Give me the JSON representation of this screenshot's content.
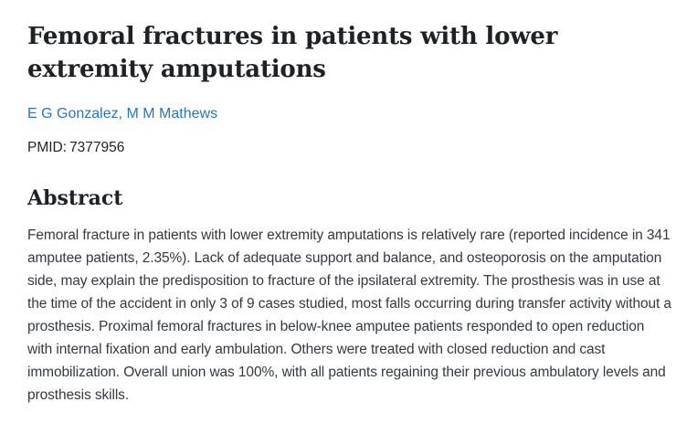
{
  "article": {
    "title": "Femoral fractures in patients with lower extremity amputations",
    "authors": [
      {
        "name": "E G Gonzalez"
      },
      {
        "name": "M M Mathews"
      }
    ],
    "authors_separator": ", ",
    "pmid_label": "PMID:",
    "pmid_value": "7377956"
  },
  "abstract": {
    "heading": "Abstract",
    "text": "Femoral fracture in patients with lower extremity amputations is relatively rare (reported incidence in 341 amputee patients, 2.35%). Lack of adequate support and balance, and osteoporosis on the amputation side, may explain the predisposition to fracture of the ipsilateral extremity. The prosthesis was in use at the time of the accident in only 3 of 9 cases studied, most falls occurring during transfer activity without a prosthesis. Proximal femoral fractures in below-knee amputee patients responded to open reduction with internal fixation and early ambulation. Others were treated with closed reduction and cast immobilization. Overall union was 100%, with all patients regaining their previous ambulatory levels and prosthesis skills."
  },
  "colors": {
    "background": "#ffffff",
    "title_text": "#1e2125",
    "body_text": "#343a40",
    "link_blue": "#2976b8"
  }
}
